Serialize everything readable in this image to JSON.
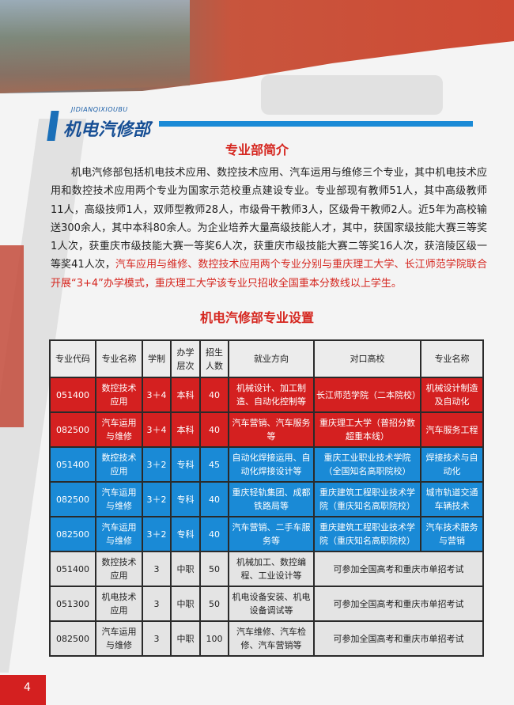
{
  "header": {
    "logo_pinyin": "JIDIANQIXIOUBU",
    "logo_title": "机电汽修部"
  },
  "intro": {
    "title": "专业部简介",
    "text": "机电汽修部包括机电技术应用、数控技术应用、汽车运用与维修三个专业，其中机电技术应用和数控技术应用两个专业为国家示范校重点建设专业。专业部现有教师51人，其中高级教师11人，高级技师1人，双师型教师28人，市级骨干教师3人，区级骨干教师2人。近5年为高校输送300余人，其中本科80余人。为企业培养大量高级技能人才，其中，获国家级技能大赛三等奖1人次，获重庆市级技能大赛一等奖6人次，获重庆市级技能大赛二等奖16人次，获涪陵区级一等奖41人次，",
    "highlight": "汽车应用与维修、数控技术应用两个专业分别与重庆理工大学、长江师范学院联合开展“3+4”办学模式，重庆理工大学该专业只招收全国重本分数线以上学生。"
  },
  "table": {
    "title": "机电汽修部专业设置",
    "headers": [
      "专业代码",
      "专业名称",
      "学制",
      "办学层次",
      "招生人数",
      "就业方向",
      "对口高校",
      "专业名称"
    ],
    "rows": [
      [
        "051400",
        "数控技术应用",
        "3＋4",
        "本科",
        "40",
        "机械设计、加工制造、自动化控制等",
        "长江师范学院（二本院校）",
        "机械设计制造及自动化"
      ],
      [
        "082500",
        "汽车运用与维修",
        "3＋4",
        "本科",
        "40",
        "汽车营销、汽车服务等",
        "重庆理工大学（普招分数超重本线）",
        "汽车服务工程"
      ],
      [
        "051400",
        "数控技术应用",
        "3＋2",
        "专科",
        "45",
        "自动化焊接运用、自动化焊接设计等",
        "重庆工业职业技术学院（全国知名高职院校）",
        "焊接技术与自动化"
      ],
      [
        "082500",
        "汽车运用与维修",
        "3＋2",
        "专科",
        "40",
        "重庆轻轨集团、成都铁路局等",
        "重庆建筑工程职业技术学院（重庆知名高职院校）",
        "城市轨道交通车辆技术"
      ],
      [
        "082500",
        "汽车运用与维修",
        "3＋2",
        "专科",
        "40",
        "汽车营销、二手车服务等",
        "重庆建筑工程职业技术学院（重庆知名高职院校）",
        "汽车技术服务与营销"
      ],
      [
        "051400",
        "数控技术应用",
        "3",
        "中职",
        "50",
        "机械加工、数控编程、工业设计等",
        "可参加全国高考和重庆市单招考试"
      ],
      [
        "051300",
        "机电技术应用",
        "3",
        "中职",
        "50",
        "机电设备安装、机电设备调试等",
        "可参加全国高考和重庆市单招考试"
      ],
      [
        "082500",
        "汽车运用与维修",
        "3",
        "中职",
        "100",
        "汽车维修、汽车检修、汽车营销等",
        "可参加全国高考和重庆市单招考试"
      ]
    ]
  },
  "footer": {
    "page_number": "4"
  },
  "colors": {
    "red": "#d42020",
    "blue": "#1a8ad6",
    "gray": "#e4e4e4"
  }
}
